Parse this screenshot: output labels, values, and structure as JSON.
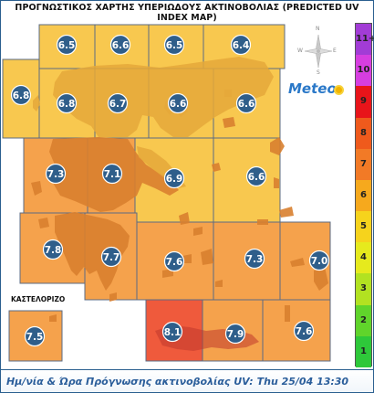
{
  "title": "ΠΡΟΓΝΩΣΤΙΚΟΣ ΧΑΡΤΗΣ ΥΠΕΡΙΩΔΟΥΣ ΑΚΤΙΝΟΒΟΛΙΑΣ (PREDICTED UV INDEX MAP)",
  "brand": "Meteo",
  "inset_label": "ΚΑΣΤΕΛΟΡΙΖΟ",
  "compass": {
    "n": "N",
    "s": "S",
    "e": "E",
    "w": "W"
  },
  "footer": {
    "label": "Ημ/νία & Ώρα Πρόγνωσης ακτινοβολίας UV:",
    "datetime": "Thu 25/04 13:30"
  },
  "legend": {
    "items": [
      {
        "label": "11+",
        "color": "#a23cd6"
      },
      {
        "label": "10",
        "color": "#d63ee0"
      },
      {
        "label": "9",
        "color": "#e8141a"
      },
      {
        "label": "8",
        "color": "#ef5a1c"
      },
      {
        "label": "7",
        "color": "#f27a26"
      },
      {
        "label": "6",
        "color": "#f6a91d"
      },
      {
        "label": "5",
        "color": "#f6d31c"
      },
      {
        "label": "4",
        "color": "#e6ea1d"
      },
      {
        "label": "3",
        "color": "#b2e221"
      },
      {
        "label": "2",
        "color": "#60d42b"
      },
      {
        "label": "1",
        "color": "#2ec83a"
      }
    ]
  },
  "regions": [
    {
      "name": "uv-cell-r1-c1",
      "uv": "6.5"
    },
    {
      "name": "uv-cell-r1-c2",
      "uv": "6.6"
    },
    {
      "name": "uv-cell-r1-c3",
      "uv": "6.5"
    },
    {
      "name": "uv-cell-r1-c4",
      "uv": "6.4"
    },
    {
      "name": "uv-cell-r2-c0",
      "uv": "6.8"
    },
    {
      "name": "uv-cell-r2-c1",
      "uv": "6.8"
    },
    {
      "name": "uv-cell-r2-c2",
      "uv": "6.7"
    },
    {
      "name": "uv-cell-r2-c3",
      "uv": "6.6"
    },
    {
      "name": "uv-cell-r2-c4",
      "uv": "6.6"
    },
    {
      "name": "uv-cell-r3-c1",
      "uv": "7.3"
    },
    {
      "name": "uv-cell-r3-c2",
      "uv": "7.1"
    },
    {
      "name": "uv-cell-r3-c3",
      "uv": "6.9"
    },
    {
      "name": "uv-cell-r3-c4",
      "uv": "6.6"
    },
    {
      "name": "uv-cell-r4-c1",
      "uv": "7.8"
    },
    {
      "name": "uv-cell-r4-c2",
      "uv": "7.7"
    },
    {
      "name": "uv-cell-r4-c3",
      "uv": "7.6"
    },
    {
      "name": "uv-cell-r4-c4",
      "uv": "7.3"
    },
    {
      "name": "uv-cell-r4-c5",
      "uv": "7.0"
    },
    {
      "name": "uv-cell-crete-west",
      "uv": "8.1"
    },
    {
      "name": "uv-cell-crete-east",
      "uv": "7.9"
    },
    {
      "name": "uv-cell-r5-c5",
      "uv": "7.6"
    },
    {
      "name": "uv-cell-kastelorizo",
      "uv": "7.5"
    }
  ]
}
